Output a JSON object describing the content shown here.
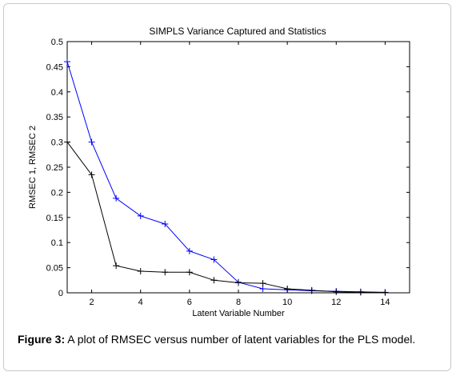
{
  "caption": {
    "label": "Figure 3:",
    "text": " A plot of RMSEC versus number of latent variables for the PLS model."
  },
  "chart_data": {
    "type": "line",
    "title": "SIMPLS Variance Captured and Statistics",
    "xlabel": "Latent Variable Number",
    "ylabel": "RMSEC 1, RMSEC 2",
    "xlim": [
      1,
      15
    ],
    "ylim": [
      0,
      0.5
    ],
    "xticks": [
      2,
      4,
      6,
      8,
      10,
      12,
      14
    ],
    "yticks": [
      0,
      0.05,
      0.1,
      0.15,
      0.2,
      0.25,
      0.3,
      0.35,
      0.4,
      0.45,
      0.5
    ],
    "ytick_labels": [
      "0",
      "0.05",
      "0.1",
      "0.15",
      "0.2",
      "0.25",
      "0.3",
      "0.35",
      "0.4",
      "0.45",
      "0.5"
    ],
    "grid": false,
    "marker": "+",
    "x": [
      1,
      2,
      3,
      4,
      5,
      6,
      7,
      8,
      9,
      10,
      11,
      12,
      13,
      14
    ],
    "series": [
      {
        "color": "#0000ff",
        "values": [
          0.46,
          0.3,
          0.188,
          0.153,
          0.137,
          0.083,
          0.066,
          0.021,
          0.008,
          0.006,
          0.004,
          0.003,
          0.002,
          0.001
        ]
      },
      {
        "color": "#000000",
        "values": [
          0.3,
          0.235,
          0.054,
          0.043,
          0.041,
          0.041,
          0.025,
          0.02,
          0.019,
          0.008,
          0.005,
          0.002,
          0.001,
          0.0005
        ]
      }
    ]
  }
}
